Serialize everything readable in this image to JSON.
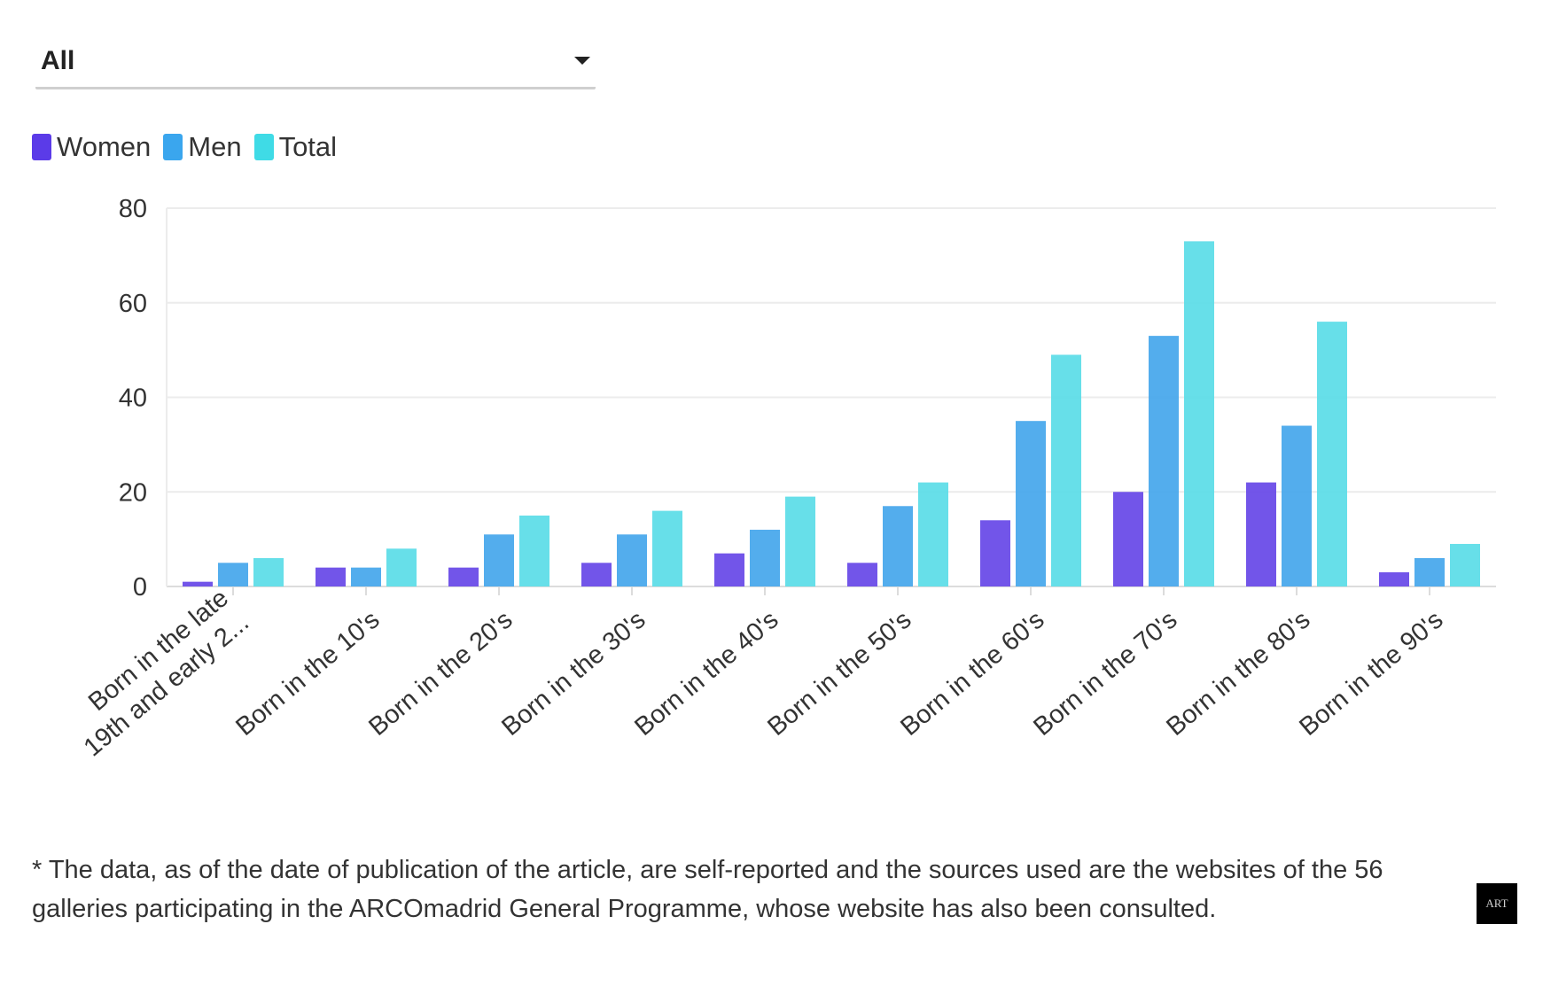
{
  "filter": {
    "selected": "All"
  },
  "legend": [
    {
      "label": "Women",
      "color": "#5b3be8"
    },
    {
      "label": "Men",
      "color": "#3aa6ee"
    },
    {
      "label": "Total",
      "color": "#3fdbe6"
    }
  ],
  "chart_data": {
    "type": "bar",
    "categories": [
      [
        "Born in the late",
        "19th and early 2..."
      ],
      [
        "Born in the 10's"
      ],
      [
        "Born in the 20's"
      ],
      [
        "Born in the 30's"
      ],
      [
        "Born in the 40's"
      ],
      [
        "Born in the 50's"
      ],
      [
        "Born in the 60's"
      ],
      [
        "Born in the 70's"
      ],
      [
        "Born in the 80's"
      ],
      [
        "Born in the 90's"
      ]
    ],
    "series": [
      {
        "name": "Women",
        "color": "#6a4ce8",
        "values": [
          1,
          4,
          4,
          5,
          7,
          5,
          14,
          20,
          22,
          3
        ]
      },
      {
        "name": "Men",
        "color": "#4aa9ec",
        "values": [
          5,
          4,
          11,
          11,
          12,
          17,
          35,
          53,
          34,
          6
        ]
      },
      {
        "name": "Total",
        "color": "#5fdde8",
        "values": [
          6,
          8,
          15,
          16,
          19,
          22,
          49,
          73,
          56,
          9
        ]
      }
    ],
    "ylim": [
      0,
      80
    ],
    "yticks": [
      0,
      20,
      40,
      60,
      80
    ],
    "grid": true,
    "legend_position": "top-left"
  },
  "footnote": "* The data, as of the date of publication of the article, are self-reported and the sources used are the websites of the 56 galleries participating in the ARCOmadrid General Programme, whose website has also been consulted.",
  "logo_text": "ART"
}
